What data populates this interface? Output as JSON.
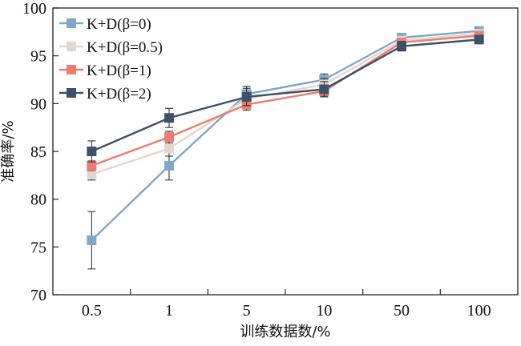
{
  "chart_data": {
    "type": "line",
    "xlabel": "训练数据数/%",
    "ylabel": "准确率/%",
    "categories": [
      "0.5",
      "1",
      "5",
      "10",
      "50",
      "100"
    ],
    "ylim": [
      70,
      100
    ],
    "yticks": [
      70,
      75,
      80,
      85,
      90,
      95,
      100
    ],
    "legend_position": "top-left",
    "grid": false,
    "series": [
      {
        "name": "K+D(β=0)",
        "color": "#7fa7c9",
        "values": [
          75.7,
          83.5,
          91.0,
          92.5,
          96.9,
          97.6
        ],
        "error": [
          3.0,
          1.5,
          0.8,
          0.6,
          0.4,
          0.3
        ]
      },
      {
        "name": "K+D(β=0.5)",
        "color": "#e4d6cf",
        "values": [
          82.6,
          85.3,
          90.5,
          92.0,
          96.6,
          97.3
        ],
        "error": [
          0.6,
          0.8,
          0.6,
          0.6,
          0.4,
          0.3
        ]
      },
      {
        "name": "K+D(β=1)",
        "color": "#ec7d70",
        "values": [
          83.5,
          86.5,
          89.9,
          91.3,
          96.4,
          97.1
        ],
        "error": [
          0.5,
          0.6,
          0.6,
          0.5,
          0.4,
          0.3
        ]
      },
      {
        "name": "K+D(β=2)",
        "color": "#3e516b",
        "values": [
          85.0,
          88.5,
          90.7,
          91.5,
          96.0,
          96.7
        ],
        "error": [
          1.1,
          1.0,
          0.9,
          0.8,
          0.5,
          0.3
        ]
      }
    ]
  }
}
